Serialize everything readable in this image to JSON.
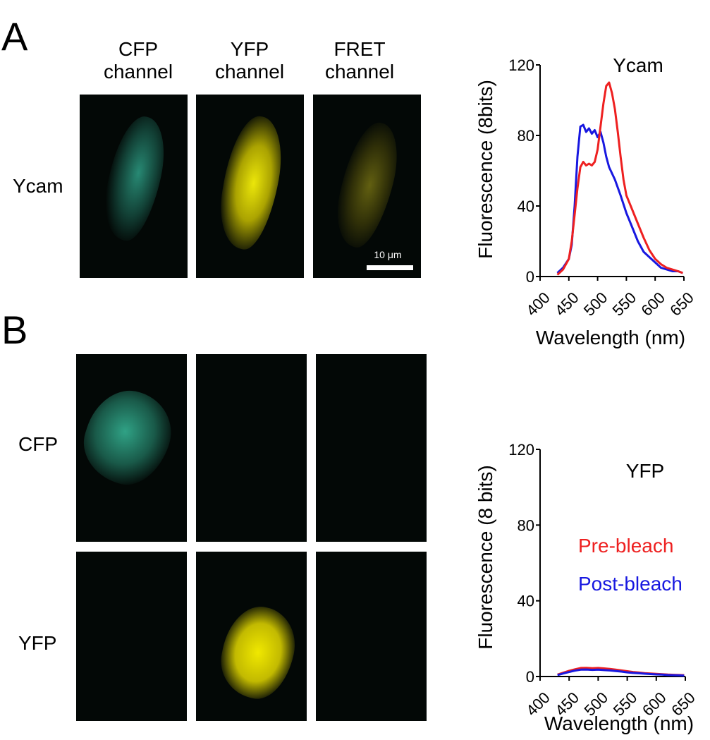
{
  "panel_a": {
    "letter": "A",
    "columns": [
      {
        "line1": "CFP",
        "line2": "channel"
      },
      {
        "line1": "YFP",
        "line2": "channel"
      },
      {
        "line1": "FRET",
        "line2": "channel"
      }
    ],
    "row_label": "Ycam",
    "scale_bar_label": "10 μm"
  },
  "panel_b": {
    "letter": "B",
    "row_labels": [
      "CFP",
      "YFP"
    ]
  },
  "colors": {
    "cfp": "#2fa88e",
    "yfp": "#d8d000",
    "pre_bleach": "#ee2020",
    "post_bleach": "#1818e0"
  },
  "chart_data": [
    {
      "type": "line",
      "title": "Ycam",
      "xlabel": "Wavelength (nm)",
      "ylabel": "Fluorescence (8bits)",
      "xlim": [
        400,
        650
      ],
      "ylim": [
        0,
        120
      ],
      "x_ticks": [
        "400",
        "450",
        "500",
        "550",
        "600",
        "650"
      ],
      "y_ticks": [
        "0",
        "40",
        "80",
        "120"
      ],
      "series": [
        {
          "color": "#1818e0",
          "x": [
            430,
            440,
            450,
            455,
            460,
            465,
            470,
            475,
            480,
            485,
            490,
            495,
            500,
            505,
            510,
            515,
            520,
            530,
            540,
            550,
            560,
            570,
            580,
            590,
            600,
            610,
            620,
            630,
            640,
            648
          ],
          "y": [
            2,
            5,
            10,
            18,
            40,
            68,
            85,
            86,
            82,
            84,
            81,
            83,
            79,
            82,
            76,
            68,
            62,
            55,
            46,
            36,
            28,
            20,
            14,
            11,
            8,
            5,
            4,
            3,
            3,
            2
          ]
        },
        {
          "color": "#ee2020",
          "x": [
            430,
            440,
            450,
            455,
            460,
            465,
            470,
            475,
            480,
            485,
            490,
            495,
            500,
            505,
            510,
            515,
            520,
            525,
            530,
            535,
            540,
            545,
            550,
            560,
            570,
            580,
            590,
            600,
            610,
            620,
            630,
            640,
            648
          ],
          "y": [
            1,
            4,
            10,
            20,
            35,
            50,
            62,
            65,
            63,
            64,
            63,
            65,
            72,
            85,
            98,
            108,
            110,
            104,
            95,
            82,
            68,
            55,
            46,
            38,
            30,
            22,
            15,
            10,
            7,
            5,
            4,
            3,
            2
          ]
        }
      ]
    },
    {
      "type": "line",
      "title": "YFP",
      "xlabel": "Wavelength (nm)",
      "ylabel": "Fluorescence (8 bits)",
      "xlim": [
        400,
        650
      ],
      "ylim": [
        0,
        120
      ],
      "x_ticks": [
        "400",
        "450",
        "500",
        "550",
        "600",
        "650"
      ],
      "y_ticks": [
        "0",
        "40",
        "80",
        "120"
      ],
      "series": [
        {
          "name": "Pre-bleach",
          "color": "#ee2020",
          "x": [
            430,
            440,
            450,
            460,
            470,
            480,
            490,
            500,
            510,
            520,
            530,
            540,
            550,
            560,
            570,
            580,
            590,
            600,
            610,
            620,
            630,
            640,
            648
          ],
          "y": [
            1,
            2,
            3,
            3.8,
            4.5,
            4.6,
            4.4,
            4.5,
            4.3,
            4.0,
            3.6,
            3.2,
            2.8,
            2.4,
            2.1,
            1.8,
            1.6,
            1.4,
            1.2,
            1.0,
            0.9,
            0.8,
            0.7
          ]
        },
        {
          "name": "Post-bleach",
          "color": "#1818e0",
          "x": [
            430,
            440,
            450,
            460,
            470,
            480,
            490,
            500,
            510,
            520,
            530,
            540,
            550,
            560,
            570,
            580,
            590,
            600,
            610,
            620,
            630,
            640,
            648
          ],
          "y": [
            0.8,
            1.6,
            2.4,
            3.1,
            3.6,
            3.7,
            3.5,
            3.6,
            3.4,
            3.2,
            2.9,
            2.6,
            2.2,
            1.9,
            1.7,
            1.5,
            1.3,
            1.1,
            1.0,
            0.8,
            0.7,
            0.6,
            0.5
          ]
        }
      ]
    }
  ]
}
